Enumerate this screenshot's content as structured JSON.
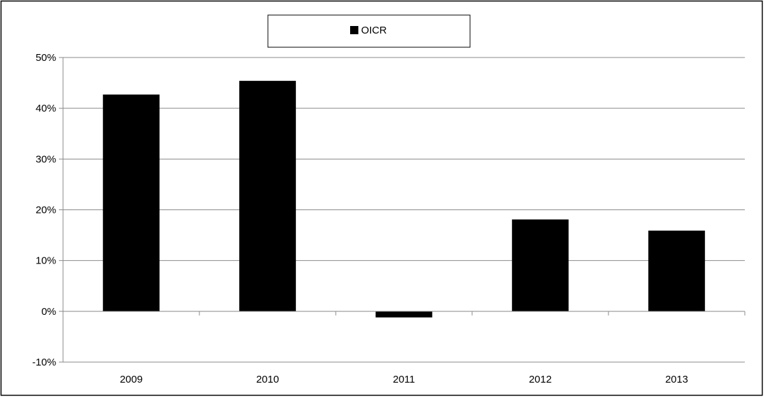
{
  "chart_data": {
    "type": "bar",
    "categories": [
      "2009",
      "2010",
      "2011",
      "2012",
      "2013"
    ],
    "series": [
      {
        "name": "OICR",
        "values": [
          42.7,
          45.4,
          -1.2,
          18.1,
          15.9
        ],
        "color": "#000000"
      }
    ],
    "y_ticks": [
      "-10%",
      "0%",
      "10%",
      "20%",
      "30%",
      "40%",
      "50%"
    ],
    "y_tick_values": [
      -10,
      0,
      10,
      20,
      30,
      40,
      50
    ],
    "ylim": [
      -10,
      50
    ],
    "unit": "%",
    "grid": true,
    "legend": {
      "position": "top-center",
      "entries": [
        "OICR"
      ]
    },
    "title": "",
    "xlabel": "",
    "ylabel": ""
  }
}
